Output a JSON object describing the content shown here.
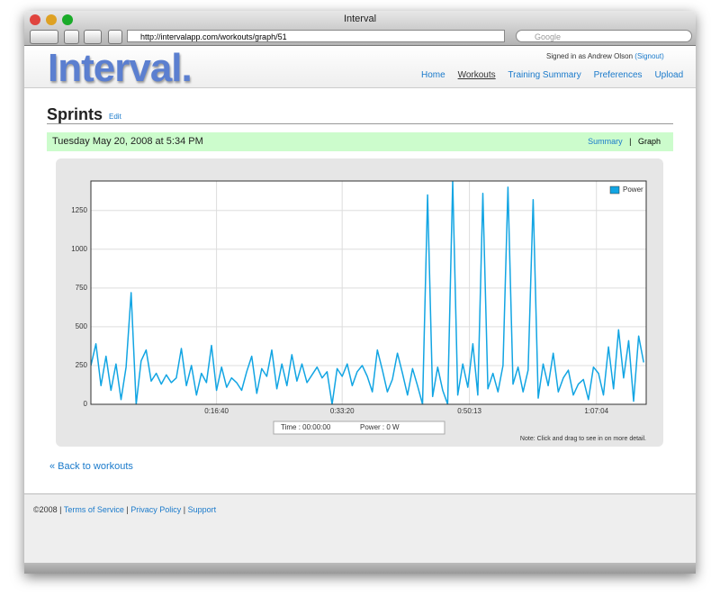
{
  "window": {
    "title": "Interval",
    "url": "http://intervalapp.com/workouts/graph/51",
    "search": "Google"
  },
  "header": {
    "logo": "Interval.",
    "signed_in": "Signed in as Andrew Olson",
    "signout": "(Signout)",
    "nav": [
      "Home",
      "Workouts",
      "Training Summary",
      "Preferences",
      "Upload"
    ]
  },
  "workout": {
    "title": "Sprints",
    "edit": "Edit",
    "date": "Tuesday May 20, 2008 at 5:34 PM",
    "summary": "Summary",
    "separator": "|",
    "graph": "Graph"
  },
  "chart_data": {
    "type": "line",
    "x": [
      0,
      40,
      80,
      120,
      160,
      200,
      240,
      280,
      320,
      360,
      400,
      440,
      480,
      520,
      560,
      600,
      640,
      680,
      720,
      760,
      800,
      840,
      880,
      920,
      960,
      1000,
      1040,
      1080,
      1120,
      1160,
      1200,
      1240,
      1280,
      1320,
      1360,
      1400,
      1440,
      1480,
      1520,
      1560,
      1600,
      1640,
      1680,
      1720,
      1760,
      1800,
      1840,
      1880,
      1920,
      1960,
      2000,
      2040,
      2080,
      2120,
      2160,
      2200,
      2240,
      2280,
      2320,
      2360,
      2400,
      2440,
      2480,
      2520,
      2560,
      2600,
      2640,
      2680,
      2720,
      2760,
      2800,
      2840,
      2880,
      2920,
      2960,
      3000,
      3040,
      3080,
      3120,
      3160,
      3200,
      3240,
      3280,
      3320,
      3360,
      3400,
      3440,
      3480,
      3520,
      3560,
      3600,
      3640,
      3680,
      3720,
      3760,
      3800,
      3840,
      3880,
      3920,
      3960,
      4000,
      4040,
      4080,
      4120,
      4160,
      4200,
      4240,
      4280,
      4320,
      4360,
      4400
    ],
    "series": [
      {
        "name": "Power",
        "color": "#12a5e3",
        "values": [
          250,
          390,
          120,
          310,
          90,
          260,
          30,
          240,
          720,
          0,
          280,
          350,
          150,
          200,
          130,
          190,
          140,
          170,
          360,
          120,
          250,
          60,
          200,
          140,
          380,
          90,
          240,
          110,
          170,
          140,
          90,
          210,
          310,
          70,
          230,
          180,
          350,
          100,
          260,
          120,
          320,
          150,
          260,
          140,
          190,
          240,
          170,
          210,
          0,
          230,
          180,
          260,
          120,
          210,
          250,
          180,
          80,
          350,
          220,
          80,
          160,
          330,
          200,
          60,
          230,
          120,
          0,
          1350,
          50,
          240,
          90,
          0,
          1440,
          60,
          260,
          110,
          390,
          60,
          1360,
          100,
          200,
          80,
          250,
          1400,
          130,
          240,
          80,
          220,
          1320,
          40,
          260,
          120,
          330,
          80,
          170,
          220,
          60,
          130,
          160,
          30,
          240,
          200,
          60,
          370,
          100,
          480,
          170,
          410,
          20,
          440,
          270
        ]
      }
    ],
    "xlim": [
      0,
      4420
    ],
    "xticks": [
      {
        "value": 1000,
        "label": "0:16:40"
      },
      {
        "value": 2000,
        "label": "0:33:20"
      },
      {
        "value": 3013,
        "label": "0:50:13"
      },
      {
        "value": 4024,
        "label": "1:07:04"
      }
    ],
    "ylim": [
      0,
      1440
    ],
    "yticks": [
      0,
      250,
      500,
      750,
      1000,
      1250
    ],
    "grid": true,
    "legend": "upper right",
    "readout": {
      "time": "Time : 00:00:00",
      "power": "Power : 0 W"
    },
    "note": "Note: Click and drag to see in on more detail."
  },
  "back": "« Back to workouts",
  "footer": {
    "copyright": "©2008",
    "separator": "|",
    "links": [
      "Terms of Service",
      "Privacy Policy",
      "Support"
    ]
  }
}
